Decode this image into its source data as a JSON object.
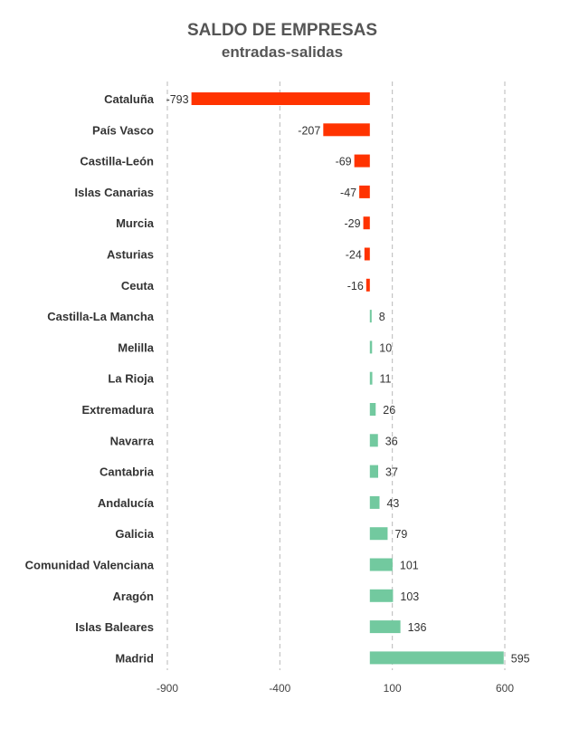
{
  "chart_data": {
    "type": "bar",
    "orientation": "horizontal",
    "title": "SALDO DE EMPRESAS",
    "subtitle": "entradas-salidas",
    "categories": [
      "Cataluña",
      "País Vasco",
      "Castilla-León",
      "Islas Canarias",
      "Murcia",
      "Asturias",
      "Ceuta",
      "Castilla-La Mancha",
      "Melilla",
      "La Rioja",
      "Extremadura",
      "Navarra",
      "Cantabria",
      "Andalucía",
      "Galicia",
      "Comunidad Valenciana",
      "Aragón",
      "Islas Baleares",
      "Madrid"
    ],
    "values": [
      -793,
      -207,
      -69,
      -47,
      -29,
      -24,
      -16,
      8,
      10,
      11,
      26,
      36,
      37,
      43,
      79,
      101,
      103,
      136,
      595
    ],
    "data_labels": [
      "-793",
      "-207",
      "-69",
      "-47",
      "-29",
      "-24",
      "-16",
      "8",
      "10",
      "11",
      "26",
      "36",
      "37",
      "43",
      "79",
      "101",
      "103",
      "136",
      "595"
    ],
    "xticks": [
      -900,
      -400,
      100,
      600
    ],
    "xtick_labels": [
      "-900",
      "-400",
      "100",
      "600"
    ],
    "xlim": [
      -900,
      600
    ],
    "grid": "vertical dashed",
    "legend": "none",
    "colors": {
      "negative": "#ff3300",
      "positive": "#72c99f"
    }
  }
}
